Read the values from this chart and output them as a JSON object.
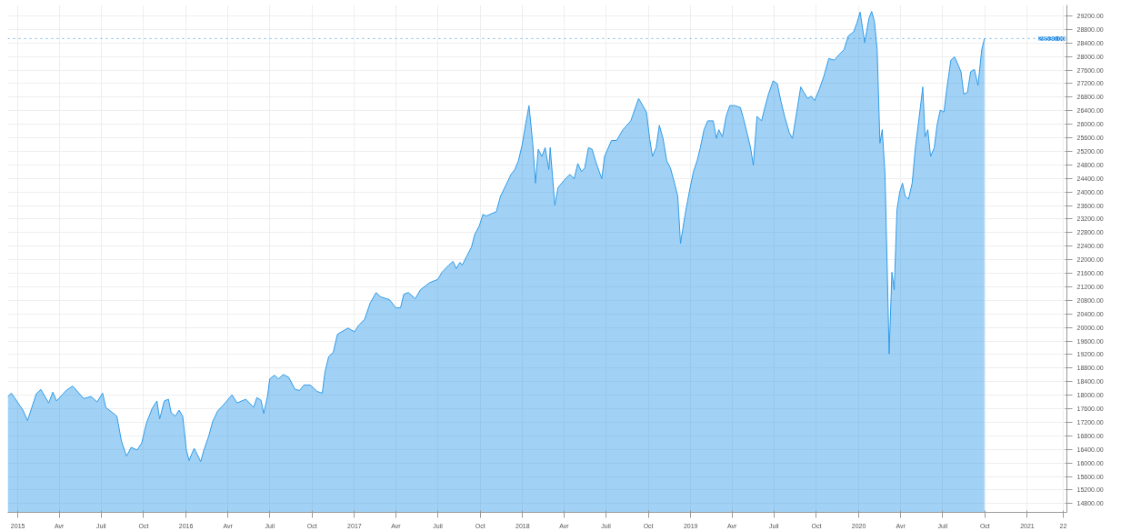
{
  "chart_data": {
    "type": "area",
    "grid": true,
    "marker": "none",
    "line_style": "solid",
    "xlim": [
      "2014-12-10",
      "2021-03-28"
    ],
    "ylim": [
      14540,
      29520
    ],
    "xticks": [
      {
        "value": "2015-01-01",
        "label": "2015"
      },
      {
        "value": "2015-04-01",
        "label": "Avr"
      },
      {
        "value": "2015-07-01",
        "label": "Juil"
      },
      {
        "value": "2015-10-01",
        "label": "Oct"
      },
      {
        "value": "2016-01-01",
        "label": "2016"
      },
      {
        "value": "2016-04-01",
        "label": "Avr"
      },
      {
        "value": "2016-07-01",
        "label": "Juil"
      },
      {
        "value": "2016-10-01",
        "label": "Oct"
      },
      {
        "value": "2017-01-01",
        "label": "2017"
      },
      {
        "value": "2017-04-01",
        "label": "Avr"
      },
      {
        "value": "2017-07-01",
        "label": "Juil"
      },
      {
        "value": "2017-10-01",
        "label": "Oct"
      },
      {
        "value": "2018-01-01",
        "label": "2018"
      },
      {
        "value": "2018-04-01",
        "label": "Avr"
      },
      {
        "value": "2018-07-01",
        "label": "Juil"
      },
      {
        "value": "2018-10-01",
        "label": "Oct"
      },
      {
        "value": "2019-01-01",
        "label": "2019"
      },
      {
        "value": "2019-04-01",
        "label": "Avr"
      },
      {
        "value": "2019-07-01",
        "label": "Juil"
      },
      {
        "value": "2019-10-01",
        "label": "Oct"
      },
      {
        "value": "2020-01-01",
        "label": "2020"
      },
      {
        "value": "2020-04-01",
        "label": "Avr"
      },
      {
        "value": "2020-07-01",
        "label": "Juil"
      },
      {
        "value": "2020-10-01",
        "label": "Oct"
      },
      {
        "value": "2021-01-01",
        "label": "2021"
      },
      {
        "value": "2021-03-20",
        "label": "22"
      }
    ],
    "yticks": [
      {
        "value": 14800,
        "label": "14800.00"
      },
      {
        "value": 15200,
        "label": "15200.00"
      },
      {
        "value": 15600,
        "label": "15600.00"
      },
      {
        "value": 16000,
        "label": "16000.00"
      },
      {
        "value": 16400,
        "label": "16400.00"
      },
      {
        "value": 16800,
        "label": "16800.00"
      },
      {
        "value": 17200,
        "label": "17200.00"
      },
      {
        "value": 17600,
        "label": "17600.00"
      },
      {
        "value": 18000,
        "label": "18000.00"
      },
      {
        "value": 18400,
        "label": "18400.00"
      },
      {
        "value": 18800,
        "label": "18800.00"
      },
      {
        "value": 19200,
        "label": "19200.00"
      },
      {
        "value": 19600,
        "label": "19600.00"
      },
      {
        "value": 20000,
        "label": "20000.00"
      },
      {
        "value": 20400,
        "label": "20400.00"
      },
      {
        "value": 20800,
        "label": "20800.00"
      },
      {
        "value": 21200,
        "label": "21200.00"
      },
      {
        "value": 21600,
        "label": "21600.00"
      },
      {
        "value": 22000,
        "label": "22000.00"
      },
      {
        "value": 22400,
        "label": "22400.00"
      },
      {
        "value": 22800,
        "label": "22800.00"
      },
      {
        "value": 23200,
        "label": "23200.00"
      },
      {
        "value": 23600,
        "label": "23600.00"
      },
      {
        "value": 24000,
        "label": "24000.00"
      },
      {
        "value": 24400,
        "label": "24400.00"
      },
      {
        "value": 24800,
        "label": "24800.00"
      },
      {
        "value": 25200,
        "label": "25200.00"
      },
      {
        "value": 25600,
        "label": "25600.00"
      },
      {
        "value": 26000,
        "label": "26000.00"
      },
      {
        "value": 26400,
        "label": "26400.00"
      },
      {
        "value": 26800,
        "label": "26800.00"
      },
      {
        "value": 27200,
        "label": "27200.00"
      },
      {
        "value": 27600,
        "label": "27600.00"
      },
      {
        "value": 28000,
        "label": "28000.00"
      },
      {
        "value": 28400,
        "label": "28400.00"
      },
      {
        "value": 28800,
        "label": "28800.00"
      },
      {
        "value": 29200,
        "label": "29200.00"
      }
    ],
    "ref_lines": [
      {
        "axis": "y",
        "value": 28530,
        "label": "28530.00",
        "color": "#1e88e5",
        "line_style": "dotted"
      }
    ],
    "x": [
      "2014-12-10",
      "2014-12-18",
      "2015-01-12",
      "2015-01-22",
      "2015-02-10",
      "2015-02-20",
      "2015-03-09",
      "2015-03-18",
      "2015-03-26",
      "2015-04-16",
      "2015-04-30",
      "2015-05-24",
      "2015-06-09",
      "2015-06-22",
      "2015-07-04",
      "2015-07-11",
      "2015-08-04",
      "2015-08-14",
      "2015-08-25",
      "2015-09-04",
      "2015-09-17",
      "2015-09-27",
      "2015-10-07",
      "2015-10-20",
      "2015-10-30",
      "2015-11-05",
      "2015-11-15",
      "2015-11-24",
      "2015-11-30",
      "2015-12-09",
      "2015-12-17",
      "2015-12-25",
      "2016-01-02",
      "2016-01-08",
      "2016-01-13",
      "2016-01-19",
      "2016-02-02",
      "2016-02-09",
      "2016-02-19",
      "2016-02-28",
      "2016-03-10",
      "2016-03-21",
      "2016-04-10",
      "2016-04-21",
      "2016-05-10",
      "2016-05-27",
      "2016-06-03",
      "2016-06-12",
      "2016-06-18",
      "2016-06-26",
      "2016-07-01",
      "2016-07-11",
      "2016-07-20",
      "2016-07-30",
      "2016-08-11",
      "2016-08-25",
      "2016-09-04",
      "2016-09-13",
      "2016-09-27",
      "2016-10-12",
      "2016-10-23",
      "2016-10-29",
      "2016-11-06",
      "2016-11-16",
      "2016-11-25",
      "2016-12-18",
      "2017-01-01",
      "2017-01-10",
      "2017-01-23",
      "2017-02-04",
      "2017-02-17",
      "2017-02-27",
      "2017-03-18",
      "2017-04-01",
      "2017-04-11",
      "2017-04-18",
      "2017-04-28",
      "2017-05-13",
      "2017-05-24",
      "2017-06-13",
      "2017-07-01",
      "2017-07-10",
      "2017-07-25",
      "2017-08-03",
      "2017-08-10",
      "2017-08-18",
      "2017-08-23",
      "2017-09-02",
      "2017-09-12",
      "2017-09-19",
      "2017-09-29",
      "2017-10-07",
      "2017-10-14",
      "2017-11-05",
      "2017-11-14",
      "2017-11-26",
      "2017-12-07",
      "2017-12-15",
      "2017-12-23",
      "2017-12-31",
      "2018-01-08",
      "2018-01-15",
      "2018-01-23",
      "2018-01-29",
      "2018-02-04",
      "2018-02-12",
      "2018-02-19",
      "2018-02-27",
      "2018-03-02",
      "2018-03-12",
      "2018-03-19",
      "2018-04-04",
      "2018-04-14",
      "2018-04-23",
      "2018-05-01",
      "2018-05-09",
      "2018-05-16",
      "2018-05-24",
      "2018-06-01",
      "2018-06-09",
      "2018-06-22",
      "2018-06-28",
      "2018-07-13",
      "2018-07-24",
      "2018-08-07",
      "2018-08-24",
      "2018-09-10",
      "2018-09-19",
      "2018-09-27",
      "2018-10-04",
      "2018-10-10",
      "2018-10-18",
      "2018-10-25",
      "2018-11-02",
      "2018-11-10",
      "2018-11-18",
      "2018-11-27",
      "2018-12-04",
      "2018-12-10",
      "2018-12-20",
      "2018-12-29",
      "2019-01-07",
      "2019-01-15",
      "2019-01-22",
      "2019-01-30",
      "2019-02-07",
      "2019-02-19",
      "2019-02-26",
      "2019-03-03",
      "2019-03-11",
      "2019-03-19",
      "2019-03-27",
      "2019-04-07",
      "2019-04-19",
      "2019-04-27",
      "2019-05-04",
      "2019-05-11",
      "2019-05-17",
      "2019-05-25",
      "2019-06-04",
      "2019-06-11",
      "2019-06-19",
      "2019-06-29",
      "2019-07-08",
      "2019-07-16",
      "2019-07-24",
      "2019-08-03",
      "2019-08-10",
      "2019-08-20",
      "2019-08-28",
      "2019-09-04",
      "2019-09-12",
      "2019-09-20",
      "2019-09-27",
      "2019-10-07",
      "2019-10-17",
      "2019-10-28",
      "2019-11-09",
      "2019-11-20",
      "2019-11-30",
      "2019-12-09",
      "2019-12-21",
      "2019-12-28",
      "2020-01-04",
      "2020-01-14",
      "2020-01-23",
      "2020-01-29",
      "2020-02-04",
      "2020-02-10",
      "2020-02-16",
      "2020-02-21",
      "2020-02-27",
      "2020-03-03",
      "2020-03-07",
      "2020-03-13",
      "2020-03-18",
      "2020-03-24",
      "2020-03-30",
      "2020-04-05",
      "2020-04-11",
      "2020-04-18",
      "2020-04-26",
      "2020-05-03",
      "2020-05-11",
      "2020-05-19",
      "2020-05-24",
      "2020-05-30",
      "2020-06-05",
      "2020-06-13",
      "2020-06-19",
      "2020-06-26",
      "2020-07-04",
      "2020-07-10",
      "2020-07-19",
      "2020-07-27",
      "2020-08-02",
      "2020-08-10",
      "2020-08-16",
      "2020-08-24",
      "2020-08-31",
      "2020-09-08",
      "2020-09-16",
      "2020-09-24",
      "2020-09-30"
    ],
    "series": [
      {
        "color": "#2f9be8",
        "values": [
          17960,
          18060,
          17560,
          17250,
          18040,
          18170,
          17770,
          18090,
          17830,
          18140,
          18270,
          17900,
          17960,
          17800,
          18060,
          17640,
          17380,
          16640,
          16200,
          16460,
          16380,
          16590,
          17170,
          17620,
          17830,
          17300,
          17830,
          17880,
          17480,
          17380,
          17560,
          17380,
          16380,
          16070,
          16250,
          16430,
          16040,
          16380,
          16770,
          17220,
          17540,
          17690,
          18010,
          17770,
          17880,
          17640,
          17930,
          17850,
          17460,
          17960,
          18480,
          18590,
          18480,
          18610,
          18530,
          18170,
          18140,
          18300,
          18300,
          18110,
          18060,
          18690,
          19140,
          19270,
          19800,
          19980,
          19870,
          20060,
          20240,
          20720,
          21030,
          20900,
          20820,
          20580,
          20580,
          20980,
          21030,
          20850,
          21110,
          21320,
          21420,
          21630,
          21840,
          21950,
          21740,
          21920,
          21840,
          22110,
          22370,
          22740,
          23000,
          23340,
          23290,
          23420,
          23870,
          24210,
          24520,
          24660,
          24920,
          25390,
          26020,
          26550,
          25440,
          24260,
          25260,
          25050,
          25310,
          24660,
          25310,
          23610,
          24130,
          24390,
          24520,
          24390,
          24840,
          24600,
          24710,
          25310,
          25260,
          24890,
          24390,
          25050,
          25520,
          25520,
          25840,
          26100,
          26760,
          26550,
          26360,
          25580,
          25050,
          25310,
          25970,
          25580,
          24920,
          24710,
          24260,
          23870,
          22480,
          23340,
          24000,
          24600,
          24920,
          25310,
          25840,
          26100,
          26100,
          25580,
          25840,
          25630,
          26230,
          26550,
          26550,
          26490,
          26100,
          25710,
          25310,
          24790,
          26230,
          26100,
          26490,
          26890,
          27280,
          27200,
          26680,
          26230,
          25760,
          25580,
          26420,
          27100,
          26940,
          26760,
          26830,
          26700,
          27020,
          27410,
          27940,
          27890,
          28070,
          28200,
          28600,
          28730,
          28990,
          29310,
          28410,
          29120,
          29330,
          29040,
          28200,
          25440,
          25840,
          24520,
          21630,
          19220,
          21630,
          21110,
          23470,
          24000,
          24260,
          23870,
          23790,
          24260,
          25310,
          26180,
          27100,
          25630,
          25840,
          25050,
          25310,
          25970,
          26420,
          26360,
          27020,
          27890,
          27990,
          27810,
          27550,
          26890,
          26940,
          27550,
          27620,
          27150,
          28200,
          28530
        ]
      }
    ]
  }
}
